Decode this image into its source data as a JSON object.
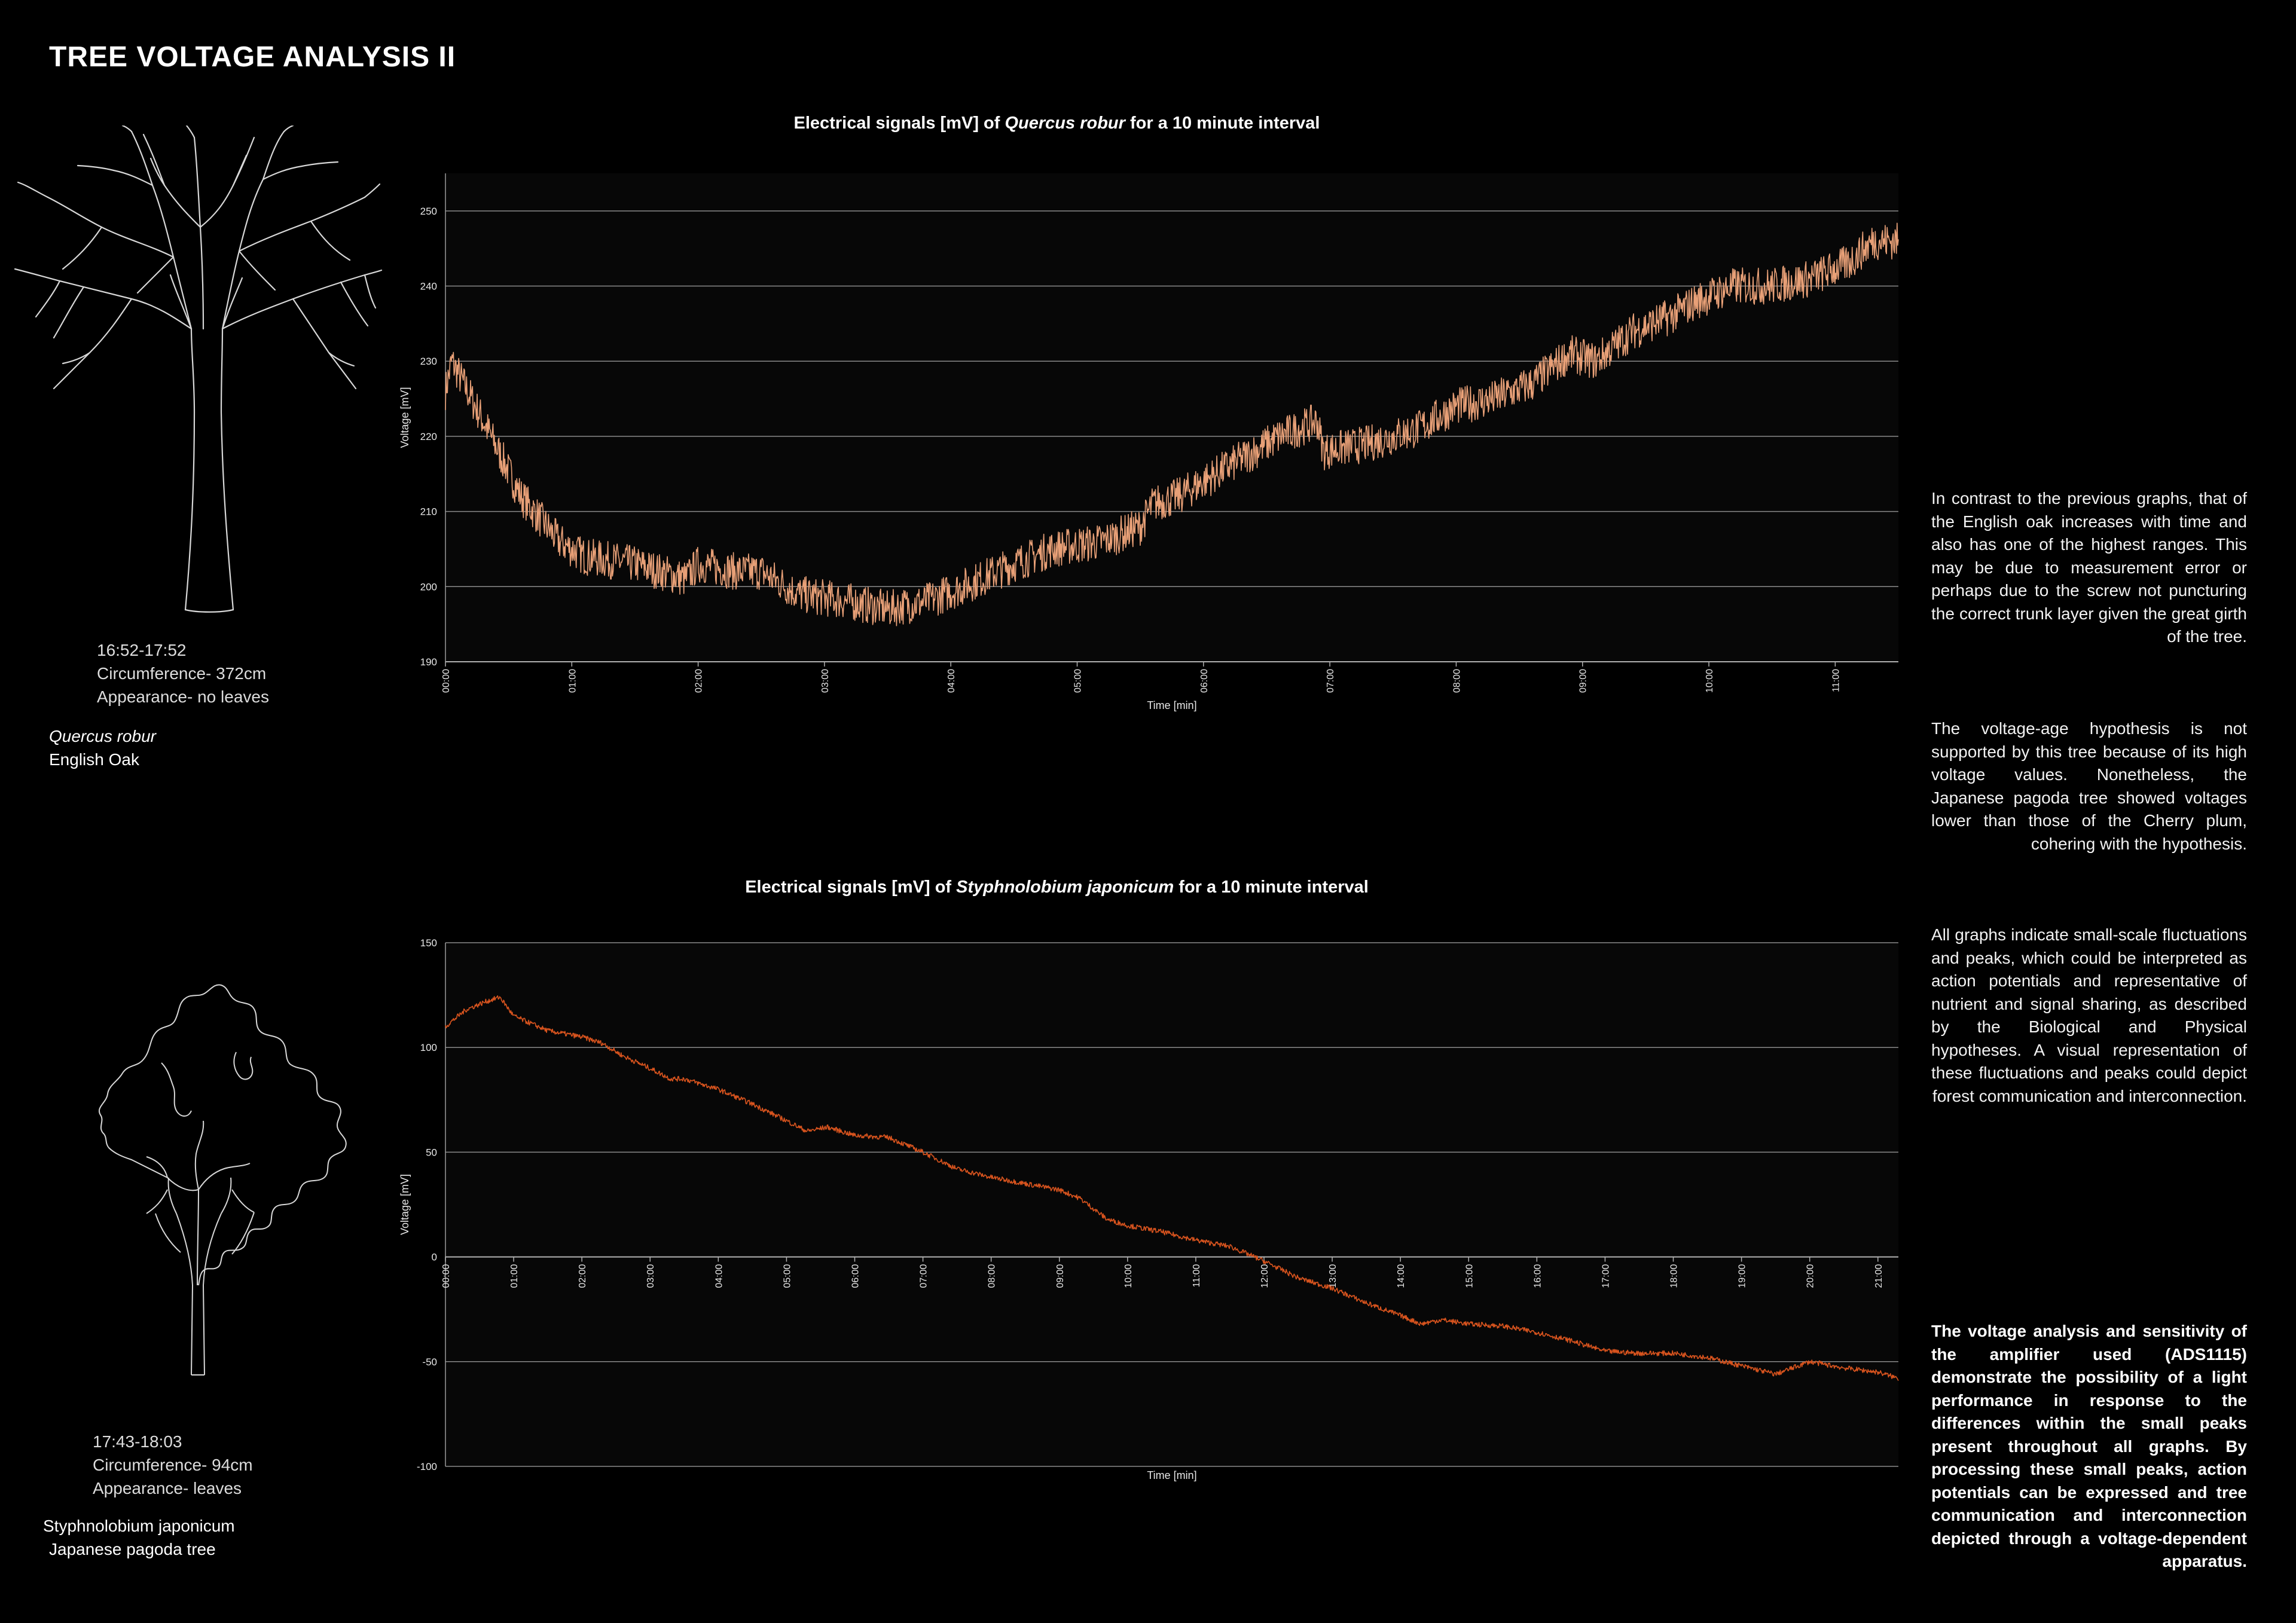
{
  "page": {
    "title": "TREE VOLTAGE ANALYSIS II"
  },
  "trees": [
    {
      "time_range": "16:52-17:52",
      "circumference": "Circumference- 372cm",
      "appearance": "Appearance- no leaves",
      "latin_name": "Quercus robur",
      "common_name": "English Oak"
    },
    {
      "time_range": "17:43-18:03",
      "circumference": "Circumference- 94cm",
      "appearance": "Appearance- leaves",
      "latin_name": "Styphnolobium japonicum",
      "common_name": "Japanese pagoda tree"
    }
  ],
  "charts": [
    {
      "title_pre": "Electrical signals [mV] of ",
      "title_italic": "Quercus robur",
      "title_post": " for a 10 minute interval"
    },
    {
      "title_pre": "Electrical signals [mV] of ",
      "title_italic": "Styphnolobium japonicum",
      "title_post": " for a 10 minute interval"
    }
  ],
  "paragraphs": [
    "In contrast to the previous graphs, that of the English oak increases with time and also has one of the highest ranges. This may be due to measurement error or perhaps due to the screw not puncturing the correct trunk layer given the great girth of the tree.",
    "The voltage-age hypothesis is not supported by this tree because of its high voltage values. Nonetheless, the Japanese pagoda tree showed voltages lower than those of the Cherry plum, cohering with the hypothesis.",
    "All graphs indicate small-scale fluctuations and peaks, which could be interpreted as action potentials and representative of nutrient and signal sharing, as described by the Biological and Physical hypotheses. A visual representation of these fluctuations and peaks could depict forest communication and interconnection.",
    "The voltage analysis and sensitivity of the amplifier used (ADS1115) demonstrate the possibility of a light performance in response to the differences within the small peaks present throughout all graphs. By processing these small peaks, action potentials can be expressed and tree communication and interconnection depicted through a voltage-dependent apparatus."
  ],
  "colors": {
    "oak_series": "#e8a077",
    "pagoda_series": "#d9541e",
    "grid": "#8a8a8a",
    "plot_bg": "#070707"
  },
  "chart_data": [
    {
      "type": "line",
      "title": "Electrical signals [mV] of Quercus robur for a 10 minute interval",
      "xlabel": "Time [min]",
      "ylabel": "Voltage [mV]",
      "ylim": [
        190,
        255
      ],
      "y_ticks": [
        190,
        200,
        210,
        220,
        230,
        240,
        250
      ],
      "x_ticks": [
        "00:00",
        "01:00",
        "02:00",
        "03:00",
        "04:00",
        "05:00",
        "06:00",
        "07:00",
        "08:00",
        "09:00",
        "10:00",
        "11:00"
      ],
      "xlim": [
        0,
        11.5
      ],
      "grid": true,
      "noise_band": 2.5,
      "series": [
        {
          "x": [
            0,
            0.05,
            0.3,
            0.6,
            0.9,
            1.1,
            1.5,
            1.9,
            2.0,
            2.3,
            2.5,
            2.8,
            3.2,
            3.5,
            3.8,
            4.1,
            4.5,
            4.8,
            5.2,
            5.5,
            5.6,
            5.8,
            6.2,
            6.6,
            6.9,
            6.95,
            7.3,
            7.7,
            8.0,
            8.3,
            8.6,
            8.9,
            9.1,
            9.4,
            9.7,
            9.9,
            10.2,
            10.5,
            10.8,
            11.1,
            11.3,
            11.5
          ],
          "y": [
            226,
            230,
            222,
            212,
            206,
            204,
            203,
            201,
            203,
            202,
            202,
            199,
            198,
            197,
            198,
            200,
            203,
            205,
            206,
            208,
            211,
            212,
            216,
            220,
            222,
            218,
            219,
            221,
            224,
            225,
            227,
            231,
            230,
            234,
            236,
            238,
            240,
            240,
            241,
            243,
            246,
            246
          ]
        }
      ]
    },
    {
      "type": "line",
      "title": "Electrical signals [mV] of Styphnolobium japonicum for a 10 minute interval",
      "xlabel": "Time [min]",
      "ylabel": "Voltage [mV]",
      "ylim": [
        -100,
        150
      ],
      "y_ticks": [
        -100,
        -50,
        0,
        50,
        100,
        150
      ],
      "x_ticks": [
        "00:00",
        "01:00",
        "02:00",
        "03:00",
        "04:00",
        "05:00",
        "06:00",
        "07:00",
        "08:00",
        "09:00",
        "10:00",
        "11:00",
        "12:00",
        "13:00",
        "14:00",
        "15:00",
        "16:00",
        "17:00",
        "18:00",
        "19:00",
        "20:00",
        "21:00"
      ],
      "xlim": [
        0,
        21.3
      ],
      "grid": true,
      "noise_band": 1.2,
      "series": [
        {
          "x": [
            0,
            0.3,
            0.6,
            0.8,
            1.0,
            1.5,
            2.0,
            2.3,
            2.6,
            3.0,
            3.3,
            3.5,
            4.0,
            4.5,
            5.0,
            5.3,
            5.6,
            6.0,
            6.5,
            7.0,
            7.5,
            8.0,
            8.5,
            9.0,
            9.3,
            9.7,
            10.0,
            10.5,
            11.0,
            11.5,
            12.0,
            12.5,
            13.0,
            13.5,
            14.0,
            14.3,
            14.6,
            15.0,
            15.5,
            16.0,
            16.5,
            17.0,
            17.5,
            18.0,
            18.5,
            19.0,
            19.5,
            20.0,
            20.5,
            21.0,
            21.3
          ],
          "y": [
            110,
            118,
            122,
            124,
            115,
            108,
            105,
            102,
            96,
            90,
            85,
            85,
            80,
            73,
            65,
            60,
            62,
            58,
            57,
            50,
            42,
            38,
            35,
            32,
            28,
            18,
            15,
            12,
            8,
            5,
            -2,
            -10,
            -15,
            -22,
            -28,
            -32,
            -30,
            -32,
            -33,
            -36,
            -40,
            -45,
            -46,
            -46,
            -48,
            -52,
            -56,
            -50,
            -53,
            -55,
            -58
          ]
        }
      ]
    }
  ]
}
